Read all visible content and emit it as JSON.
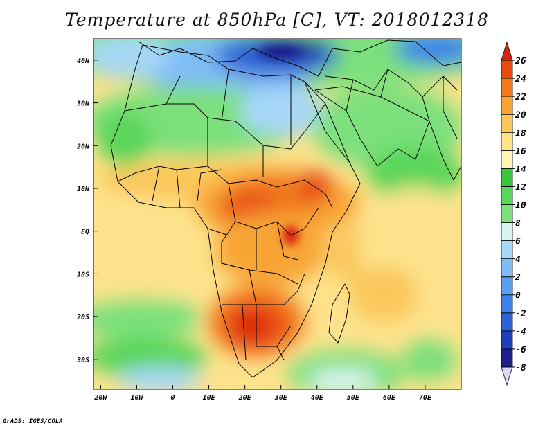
{
  "title": "Temperature at 850hPa [C], VT: 2018012318",
  "footer": "GrADS: IGES/COLA",
  "map": {
    "lon_range": [
      -22,
      80
    ],
    "lat_range": [
      -37,
      45
    ],
    "lon_ticks": [
      {
        "value": -20,
        "label": "20W"
      },
      {
        "value": -10,
        "label": "10W"
      },
      {
        "value": 0,
        "label": "0"
      },
      {
        "value": 10,
        "label": "10E"
      },
      {
        "value": 20,
        "label": "20E"
      },
      {
        "value": 30,
        "label": "30E"
      },
      {
        "value": 40,
        "label": "40E"
      },
      {
        "value": 50,
        "label": "50E"
      },
      {
        "value": 60,
        "label": "60E"
      },
      {
        "value": 70,
        "label": "70E"
      }
    ],
    "lat_ticks": [
      {
        "value": 40,
        "label": "40N"
      },
      {
        "value": 30,
        "label": "30N"
      },
      {
        "value": 20,
        "label": "20N"
      },
      {
        "value": 10,
        "label": "10N"
      },
      {
        "value": 0,
        "label": "EQ"
      },
      {
        "value": -10,
        "label": "10S"
      },
      {
        "value": -20,
        "label": "20S"
      },
      {
        "value": -30,
        "label": "30S"
      }
    ]
  },
  "colorbar": {
    "levels": [
      -8,
      -6,
      -4,
      -2,
      0,
      2,
      4,
      6,
      8,
      10,
      12,
      14,
      16,
      18,
      20,
      22,
      24,
      26
    ],
    "colors": [
      "#dcd6f7",
      "#1e1e8c",
      "#1f3fb8",
      "#2b62d6",
      "#3b82e8",
      "#5aa0ef",
      "#7fbcf5",
      "#a7d7f9",
      "#d8f4f1",
      "#7be07b",
      "#5ad65a",
      "#3cc43c",
      "#fff5b4",
      "#fde38c",
      "#fbc75c",
      "#f8a434",
      "#f27a1c",
      "#e84a12",
      "#d9240c"
    ]
  }
}
